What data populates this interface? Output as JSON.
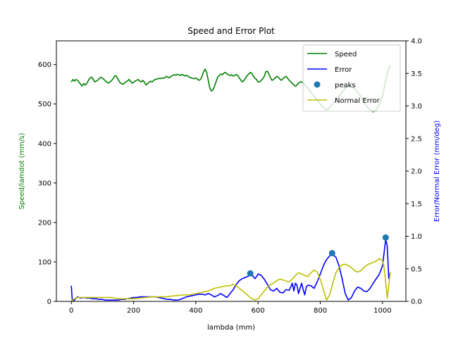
{
  "chart_data": {
    "type": "line",
    "title": "Speed and Error Plot",
    "xlabel": "lambda (mm)",
    "ylabel_left": "Speed/lamdot (mm/s)",
    "ylabel_right": "Error/Normal Error (mm/deg)",
    "xlim": [
      -48,
      1075
    ],
    "ylim_left": [
      0,
      660
    ],
    "ylim_right": [
      0,
      4.0
    ],
    "xticks": [
      0,
      200,
      400,
      600,
      800,
      1000
    ],
    "yticks_left": [
      0,
      100,
      200,
      300,
      400,
      500,
      600
    ],
    "yticks_right": [
      0.0,
      0.5,
      1.0,
      1.5,
      2.0,
      2.5,
      3.0,
      3.5,
      4.0
    ],
    "legend_position": "top-right",
    "colors": {
      "speed": "#008000",
      "error": "#0000ff",
      "peaks": "#1f77b4",
      "normal_error": "#bfbf00",
      "left_axis_label": "#008000",
      "right_axis_label": "#0000ff"
    },
    "series": [
      {
        "name": "Speed",
        "axis": "left",
        "x": [
          0,
          5,
          10,
          15,
          20,
          25,
          30,
          35,
          40,
          45,
          50,
          55,
          60,
          65,
          70,
          75,
          80,
          85,
          90,
          95,
          100,
          105,
          110,
          115,
          120,
          125,
          130,
          135,
          140,
          145,
          150,
          155,
          160,
          165,
          170,
          175,
          180,
          185,
          190,
          195,
          200,
          205,
          210,
          215,
          220,
          225,
          230,
          235,
          240,
          245,
          250,
          255,
          260,
          265,
          270,
          275,
          280,
          285,
          290,
          295,
          300,
          305,
          310,
          315,
          320,
          325,
          330,
          335,
          340,
          345,
          350,
          355,
          360,
          365,
          370,
          375,
          380,
          385,
          390,
          395,
          400,
          405,
          410,
          415,
          420,
          425,
          430,
          435,
          440,
          445,
          450,
          455,
          460,
          465,
          470,
          475,
          480,
          485,
          490,
          495,
          500,
          505,
          510,
          515,
          520,
          525,
          530,
          535,
          540,
          545,
          550,
          555,
          560,
          565,
          570,
          575,
          580,
          585,
          590,
          595,
          600,
          605,
          610,
          615,
          620,
          625,
          630,
          635,
          640,
          645,
          650,
          655,
          660,
          665,
          670,
          675,
          680,
          685,
          690,
          695,
          700,
          705,
          710,
          715,
          720,
          725,
          730,
          735,
          740,
          745,
          750,
          760,
          770,
          780,
          790,
          800,
          810,
          820,
          830,
          840,
          850,
          860,
          870,
          880,
          890,
          900,
          910,
          920,
          930,
          940,
          950,
          960,
          970,
          980,
          990,
          1000,
          1010,
          1020,
          1025
        ],
        "y": [
          556,
          562,
          558,
          562,
          560,
          555,
          550,
          546,
          552,
          548,
          552,
          560,
          566,
          568,
          563,
          556,
          558,
          560,
          565,
          568,
          566,
          562,
          558,
          555,
          553,
          556,
          560,
          565,
          572,
          570,
          563,
          556,
          552,
          550,
          552,
          556,
          558,
          562,
          558,
          553,
          555,
          558,
          560,
          562,
          558,
          556,
          560,
          555,
          548,
          552,
          555,
          558,
          556,
          560,
          562,
          563,
          565,
          564,
          566,
          565,
          566,
          570,
          568,
          566,
          570,
          572,
          574,
          573,
          575,
          574,
          572,
          575,
          573,
          571,
          573,
          570,
          568,
          566,
          565,
          564,
          566,
          563,
          560,
          562,
          570,
          582,
          588,
          580,
          560,
          540,
          533,
          536,
          545,
          556,
          568,
          572,
          576,
          574,
          578,
          580,
          576,
          574,
          572,
          574,
          571,
          572,
          575,
          572,
          566,
          560,
          556,
          560,
          566,
          572,
          576,
          580,
          578,
          570,
          565,
          562,
          556,
          556,
          560,
          564,
          570,
          582,
          583,
          576,
          566,
          560,
          562,
          566,
          570,
          568,
          563,
          560,
          565,
          568,
          570,
          565,
          560,
          556,
          552,
          548,
          545,
          548,
          553,
          556,
          556,
          553,
          548,
          540,
          530,
          520,
          510,
          500,
          490,
          485,
          490,
          500,
          510,
          520,
          530,
          540,
          546,
          545,
          540,
          530,
          520,
          505,
          494,
          485,
          480,
          485,
          500,
          520,
          560,
          590,
          598
        ]
      },
      {
        "name": "Error",
        "axis": "right",
        "x": [
          0,
          3,
          6,
          10,
          15,
          20,
          25,
          30,
          40,
          50,
          60,
          70,
          80,
          90,
          100,
          110,
          120,
          130,
          140,
          150,
          160,
          170,
          180,
          190,
          200,
          210,
          220,
          230,
          240,
          250,
          260,
          270,
          280,
          290,
          300,
          310,
          320,
          330,
          340,
          350,
          360,
          370,
          380,
          390,
          400,
          410,
          420,
          430,
          440,
          450,
          460,
          470,
          480,
          490,
          500,
          510,
          520,
          530,
          540,
          550,
          560,
          570,
          575,
          580,
          585,
          590,
          595,
          600,
          610,
          620,
          630,
          640,
          650,
          660,
          670,
          680,
          690,
          700,
          705,
          710,
          715,
          720,
          725,
          730,
          735,
          740,
          745,
          750,
          755,
          760,
          770,
          780,
          790,
          800,
          810,
          820,
          830,
          840,
          850,
          860,
          870,
          880,
          890,
          900,
          910,
          920,
          930,
          940,
          950,
          960,
          970,
          980,
          990,
          1000,
          1005,
          1010,
          1015,
          1020,
          1025
        ],
        "y": [
          0.24,
          0.02,
          0.0,
          0.02,
          0.05,
          0.07,
          0.06,
          0.05,
          0.06,
          0.05,
          0.05,
          0.04,
          0.04,
          0.03,
          0.03,
          0.02,
          0.02,
          0.02,
          0.02,
          0.02,
          0.03,
          0.03,
          0.04,
          0.05,
          0.06,
          0.06,
          0.07,
          0.07,
          0.07,
          0.07,
          0.07,
          0.07,
          0.06,
          0.05,
          0.04,
          0.03,
          0.03,
          0.02,
          0.02,
          0.03,
          0.05,
          0.07,
          0.08,
          0.09,
          0.1,
          0.11,
          0.11,
          0.1,
          0.12,
          0.1,
          0.07,
          0.09,
          0.12,
          0.09,
          0.06,
          0.12,
          0.18,
          0.26,
          0.32,
          0.35,
          0.37,
          0.39,
          0.41,
          0.4,
          0.38,
          0.35,
          0.38,
          0.42,
          0.4,
          0.34,
          0.26,
          0.18,
          0.16,
          0.2,
          0.14,
          0.13,
          0.18,
          0.17,
          0.22,
          0.28,
          0.16,
          0.28,
          0.25,
          0.12,
          0.2,
          0.28,
          0.18,
          0.1,
          0.22,
          0.25,
          0.24,
          0.2,
          0.3,
          0.42,
          0.55,
          0.64,
          0.7,
          0.72,
          0.68,
          0.55,
          0.35,
          0.12,
          0.02,
          0.06,
          0.16,
          0.22,
          0.2,
          0.16,
          0.15,
          0.2,
          0.28,
          0.35,
          0.42,
          0.55,
          0.75,
          0.95,
          0.85,
          0.35,
          0.45
        ]
      },
      {
        "name": "Normal Error",
        "axis": "right",
        "x": [
          0,
          5,
          10,
          20,
          30,
          40,
          50,
          60,
          70,
          80,
          90,
          100,
          110,
          120,
          130,
          140,
          150,
          160,
          170,
          180,
          190,
          200,
          220,
          240,
          260,
          280,
          300,
          320,
          340,
          360,
          380,
          400,
          420,
          440,
          460,
          480,
          500,
          510,
          520,
          530,
          540,
          550,
          560,
          570,
          580,
          590,
          600,
          610,
          620,
          630,
          640,
          650,
          660,
          670,
          680,
          690,
          700,
          710,
          720,
          730,
          740,
          750,
          760,
          770,
          780,
          790,
          800,
          810,
          820,
          830,
          840,
          850,
          860,
          870,
          880,
          890,
          900,
          910,
          920,
          930,
          940,
          950,
          960,
          970,
          980,
          990,
          1000,
          1005,
          1010,
          1015,
          1020,
          1025
        ],
        "y": [
          0.0,
          0.02,
          0.04,
          0.06,
          0.06,
          0.06,
          0.06,
          0.06,
          0.06,
          0.06,
          0.06,
          0.06,
          0.06,
          0.06,
          0.06,
          0.05,
          0.04,
          0.04,
          0.04,
          0.04,
          0.04,
          0.04,
          0.05,
          0.06,
          0.07,
          0.07,
          0.07,
          0.08,
          0.09,
          0.1,
          0.1,
          0.12,
          0.14,
          0.16,
          0.2,
          0.22,
          0.24,
          0.24,
          0.26,
          0.24,
          0.2,
          0.16,
          0.12,
          0.08,
          0.04,
          0.02,
          0.04,
          0.1,
          0.16,
          0.22,
          0.26,
          0.28,
          0.32,
          0.34,
          0.33,
          0.31,
          0.3,
          0.34,
          0.4,
          0.44,
          0.42,
          0.4,
          0.38,
          0.44,
          0.48,
          0.45,
          0.34,
          0.18,
          0.02,
          0.1,
          0.28,
          0.44,
          0.52,
          0.56,
          0.57,
          0.55,
          0.52,
          0.47,
          0.45,
          0.47,
          0.52,
          0.56,
          0.58,
          0.6,
          0.62,
          0.66,
          0.62,
          0.52,
          0.3,
          0.05,
          0.25,
          0.45
        ]
      },
      {
        "name": "peaks",
        "axis": "right",
        "type": "scatter",
        "x": [
          575,
          838,
          1010
        ],
        "y": [
          0.43,
          0.74,
          0.98
        ]
      }
    ]
  }
}
